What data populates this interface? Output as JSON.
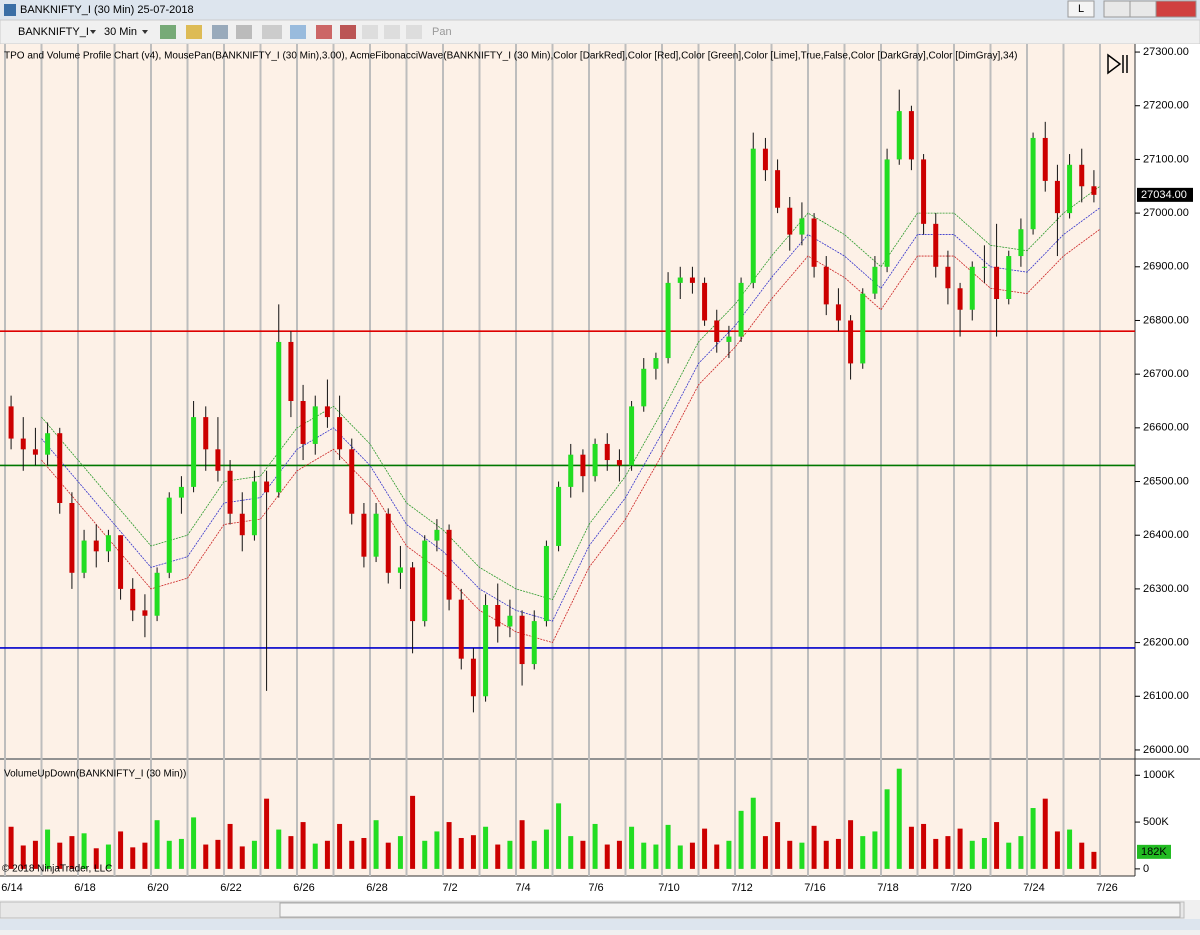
{
  "window": {
    "title": "BANKNIFTY_I (30 Min)  25-07-2018",
    "button": "L"
  },
  "toolbar": {
    "instrument": "BANKNIFTY_I",
    "interval": "30 Min",
    "pan": "Pan"
  },
  "chart_data": {
    "type": "candlestick",
    "indicator_label": "TPO and Volume Profile Chart (v4), MousePan(BANKNIFTY_I (30 Min),3.00), AcmeFibonacciWave(BANKNIFTY_I (30 Min),Color [DarkRed],Color [Red],Color [Green],Color [Lime],True,False,Color [DarkGray],Color [DimGray],34)",
    "up_color": "#22dd22",
    "down_color": "#cc0000",
    "wick_color": "#111111",
    "ylim": [
      25985,
      27315
    ],
    "yticks": [
      {
        "value": 26000,
        "label": "26000.00"
      },
      {
        "value": 26100,
        "label": "26100.00"
      },
      {
        "value": 26200,
        "label": "26200.00"
      },
      {
        "value": 26300,
        "label": "26300.00"
      },
      {
        "value": 26400,
        "label": "26400.00"
      },
      {
        "value": 26500,
        "label": "26500.00"
      },
      {
        "value": 26600,
        "label": "26600.00"
      },
      {
        "value": 26700,
        "label": "26700.00"
      },
      {
        "value": 26800,
        "label": "26800.00"
      },
      {
        "value": 26900,
        "label": "26900.00"
      },
      {
        "value": 27000,
        "label": "27000.00"
      },
      {
        "value": 27100,
        "label": "27100.00"
      },
      {
        "value": 27200,
        "label": "27200.00"
      },
      {
        "value": 27300,
        "label": "27300.00"
      }
    ],
    "last_price": {
      "value": 27034,
      "label": "27034.00"
    },
    "x_labels": [
      "6/14",
      "6/18",
      "6/20",
      "6/22",
      "6/26",
      "6/28",
      "7/2",
      "7/4",
      "7/6",
      "7/10",
      "7/12",
      "7/16",
      "7/18",
      "7/20",
      "7/24",
      "7/26"
    ],
    "ohlc": [
      [
        26640,
        26660,
        26560,
        26580
      ],
      [
        26580,
        26620,
        26520,
        26560
      ],
      [
        26560,
        26600,
        26530,
        26550
      ],
      [
        26550,
        26610,
        26530,
        26590
      ],
      [
        26590,
        26600,
        26440,
        26460
      ],
      [
        26460,
        26480,
        26300,
        26330
      ],
      [
        26330,
        26410,
        26320,
        26390
      ],
      [
        26390,
        26420,
        26340,
        26370
      ],
      [
        26370,
        26410,
        26350,
        26400
      ],
      [
        26400,
        26400,
        26280,
        26300
      ],
      [
        26300,
        26320,
        26240,
        26260
      ],
      [
        26260,
        26290,
        26210,
        26250
      ],
      [
        26250,
        26340,
        26240,
        26330
      ],
      [
        26330,
        26480,
        26320,
        26470
      ],
      [
        26470,
        26510,
        26440,
        26490
      ],
      [
        26490,
        26650,
        26480,
        26620
      ],
      [
        26620,
        26640,
        26520,
        26560
      ],
      [
        26560,
        26620,
        26500,
        26520
      ],
      [
        26520,
        26540,
        26420,
        26440
      ],
      [
        26440,
        26480,
        26370,
        26400
      ],
      [
        26400,
        26520,
        26390,
        26500
      ],
      [
        26500,
        26520,
        26110,
        26480
      ],
      [
        26480,
        26830,
        26470,
        26760
      ],
      [
        26760,
        26780,
        26620,
        26650
      ],
      [
        26650,
        26680,
        26540,
        26570
      ],
      [
        26570,
        26660,
        26550,
        26640
      ],
      [
        26640,
        26690,
        26600,
        26620
      ],
      [
        26620,
        26660,
        26540,
        26560
      ],
      [
        26560,
        26580,
        26420,
        26440
      ],
      [
        26440,
        26460,
        26340,
        26360
      ],
      [
        26360,
        26460,
        26350,
        26440
      ],
      [
        26440,
        26450,
        26310,
        26330
      ],
      [
        26330,
        26380,
        26300,
        26340
      ],
      [
        26340,
        26350,
        26180,
        26240
      ],
      [
        26240,
        26400,
        26230,
        26390
      ],
      [
        26390,
        26430,
        26370,
        26410
      ],
      [
        26410,
        26420,
        26260,
        26280
      ],
      [
        26280,
        26300,
        26150,
        26170
      ],
      [
        26170,
        26190,
        26070,
        26100
      ],
      [
        26100,
        26290,
        26090,
        26270
      ],
      [
        26270,
        26310,
        26200,
        26230
      ],
      [
        26230,
        26280,
        26210,
        26250
      ],
      [
        26250,
        26260,
        26120,
        26160
      ],
      [
        26160,
        26260,
        26150,
        26240
      ],
      [
        26240,
        26390,
        26230,
        26380
      ],
      [
        26380,
        26500,
        26370,
        26490
      ],
      [
        26490,
        26570,
        26470,
        26550
      ],
      [
        26550,
        26560,
        26480,
        26510
      ],
      [
        26510,
        26580,
        26500,
        26570
      ],
      [
        26570,
        26590,
        26520,
        26540
      ],
      [
        26540,
        26560,
        26500,
        26530
      ],
      [
        26530,
        26650,
        26520,
        26640
      ],
      [
        26640,
        26730,
        26630,
        26710
      ],
      [
        26710,
        26740,
        26690,
        26730
      ],
      [
        26730,
        26890,
        26720,
        26870
      ],
      [
        26870,
        26900,
        26840,
        26880
      ],
      [
        26880,
        26900,
        26850,
        26870
      ],
      [
        26870,
        26880,
        26790,
        26800
      ],
      [
        26800,
        26820,
        26740,
        26760
      ],
      [
        26760,
        26790,
        26730,
        26770
      ],
      [
        26770,
        26880,
        26760,
        26870
      ],
      [
        26870,
        27150,
        26860,
        27120
      ],
      [
        27120,
        27140,
        27060,
        27080
      ],
      [
        27080,
        27100,
        27000,
        27010
      ],
      [
        27010,
        27030,
        26930,
        26960
      ],
      [
        26960,
        27020,
        26940,
        26990
      ],
      [
        26990,
        27000,
        26880,
        26900
      ],
      [
        26900,
        26920,
        26810,
        26830
      ],
      [
        26830,
        26860,
        26780,
        26800
      ],
      [
        26800,
        26810,
        26690,
        26720
      ],
      [
        26720,
        26860,
        26710,
        26850
      ],
      [
        26850,
        26920,
        26840,
        26900
      ],
      [
        26900,
        27120,
        26890,
        27100
      ],
      [
        27100,
        27230,
        27090,
        27190
      ],
      [
        27190,
        27200,
        27080,
        27100
      ],
      [
        27100,
        27110,
        26960,
        26980
      ],
      [
        26980,
        27000,
        26880,
        26900
      ],
      [
        26900,
        26930,
        26830,
        26860
      ],
      [
        26860,
        26870,
        26770,
        26820
      ],
      [
        26820,
        26910,
        26800,
        26900
      ],
      [
        26900,
        26940,
        26870,
        26900
      ],
      [
        26900,
        26980,
        26770,
        26840
      ],
      [
        26840,
        26930,
        26830,
        26920
      ],
      [
        26920,
        26990,
        26900,
        26970
      ],
      [
        26970,
        27150,
        26960,
        27140
      ],
      [
        27140,
        27170,
        27040,
        27060
      ],
      [
        27060,
        27090,
        26920,
        27000
      ],
      [
        27000,
        27110,
        26990,
        27090
      ],
      [
        27090,
        27120,
        27020,
        27050
      ],
      [
        27050,
        27080,
        27020,
        27034
      ]
    ],
    "bands": [
      {
        "color": "#2a9a2a",
        "values": [
          26620,
          26540,
          26460,
          26380,
          26400,
          26500,
          26510,
          26600,
          26640,
          26570,
          26460,
          26410,
          26340,
          26300,
          26280,
          26420,
          26510,
          26630,
          26760,
          26830,
          26920,
          27000,
          26960,
          26900,
          27000,
          27000,
          26940,
          26930,
          27000,
          27050
        ]
      },
      {
        "color": "#3333cc",
        "values": [
          26580,
          26500,
          26420,
          26340,
          26360,
          26460,
          26470,
          26560,
          26600,
          26530,
          26420,
          26370,
          26300,
          26260,
          26240,
          26380,
          26470,
          26590,
          26720,
          26790,
          26880,
          26960,
          26920,
          26860,
          26960,
          26960,
          26900,
          26890,
          26960,
          27010
        ]
      },
      {
        "color": "#cc2222",
        "values": [
          26540,
          26460,
          26380,
          26300,
          26320,
          26420,
          26430,
          26520,
          26560,
          26490,
          26380,
          26330,
          26260,
          26220,
          26200,
          26340,
          26430,
          26550,
          26680,
          26750,
          26840,
          26920,
          26880,
          26820,
          26920,
          26920,
          26860,
          26850,
          26920,
          26970
        ]
      }
    ],
    "levels": [
      {
        "value": 26780,
        "color": "#dd0000"
      },
      {
        "value": 26530,
        "color": "#007700"
      },
      {
        "value": 26190,
        "color": "#0000cc"
      }
    ],
    "volume": {
      "title": "VolumeUpDown(BANKNIFTY_I (30 Min))",
      "ylim": [
        -76000,
        1163000
      ],
      "yticks": [
        0,
        {
          "value": 500000,
          "label": "500K"
        },
        {
          "value": 1000000,
          "label": "1000K"
        }
      ],
      "last": {
        "value": 182000,
        "label": "182K"
      },
      "values": [
        450000,
        250000,
        300000,
        420000,
        280000,
        350000,
        380000,
        220000,
        260000,
        400000,
        230000,
        280000,
        520000,
        300000,
        320000,
        550000,
        260000,
        310000,
        480000,
        240000,
        300000,
        750000,
        420000,
        350000,
        500000,
        270000,
        300000,
        480000,
        300000,
        330000,
        520000,
        280000,
        350000,
        780000,
        300000,
        400000,
        500000,
        330000,
        360000,
        450000,
        260000,
        300000,
        520000,
        300000,
        420000,
        700000,
        350000,
        300000,
        480000,
        260000,
        300000,
        450000,
        280000,
        260000,
        470000,
        250000,
        280000,
        430000,
        260000,
        300000,
        620000,
        760000,
        350000,
        500000,
        300000,
        280000,
        460000,
        300000,
        320000,
        520000,
        350000,
        400000,
        850000,
        1070000,
        450000,
        480000,
        320000,
        350000,
        430000,
        300000,
        330000,
        500000,
        280000,
        350000,
        650000,
        750000,
        400000,
        420000,
        280000,
        182000
      ]
    },
    "copyright": "© 2018 NinjaTrader, LLC"
  }
}
